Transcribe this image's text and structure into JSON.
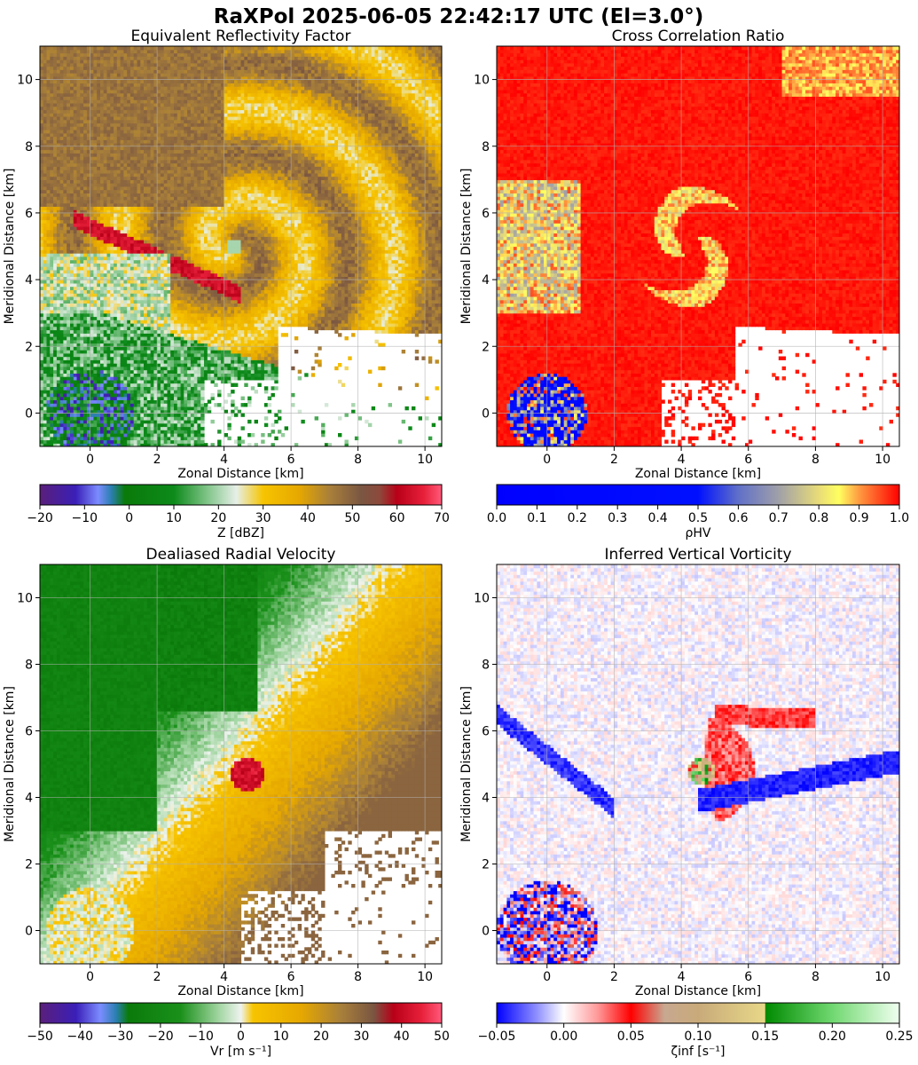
{
  "title": "RaXPol 2025-06-05 22:42:17 UTC (El=3.0°)",
  "chart_data": [
    {
      "type": "heatmap",
      "title": "Equivalent Reflectivity Factor",
      "xlabel": "Zonal Distance [km]",
      "ylabel": "Meridional Distance [km]",
      "xlim": [
        -1.5,
        10.5
      ],
      "ylim": [
        -1,
        11
      ],
      "xticks": [
        0,
        2,
        4,
        6,
        8,
        10
      ],
      "yticks": [
        0,
        2,
        4,
        6,
        8,
        10
      ],
      "grid": true,
      "field": "reflectivity",
      "features": {
        "vortex_center": [
          4.3,
          5.0
        ],
        "radar_location": [
          0,
          0
        ]
      },
      "colorbar": {
        "label": "Z [dBZ]",
        "range": [
          -20,
          70
        ],
        "ticks": [
          -20,
          -10,
          0,
          10,
          20,
          30,
          40,
          50,
          60,
          70
        ],
        "tick_labels": [
          "−20",
          "−10",
          "0",
          "10",
          "20",
          "30",
          "40",
          "50",
          "60",
          "70"
        ],
        "stops": [
          [
            -20,
            "#5a1f7a"
          ],
          [
            -12,
            "#3a1fb8"
          ],
          [
            -7,
            "#7b8cff"
          ],
          [
            -4,
            "#2a7fb0"
          ],
          [
            -1,
            "#0a7a0a"
          ],
          [
            10,
            "#0c8a1a"
          ],
          [
            18,
            "#88c890"
          ],
          [
            24,
            "#e6efe8"
          ],
          [
            30,
            "#f7c400"
          ],
          [
            38,
            "#e6a800"
          ],
          [
            45,
            "#a87f3a"
          ],
          [
            52,
            "#7a5642"
          ],
          [
            56,
            "#8c4a3c"
          ],
          [
            60,
            "#b80018"
          ],
          [
            66,
            "#e8203a"
          ],
          [
            70,
            "#ff5a7a"
          ]
        ]
      }
    },
    {
      "type": "heatmap",
      "title": "Cross Correlation Ratio",
      "xlabel": "Zonal Distance [km]",
      "ylabel": "Meridional Distance [km]",
      "xlim": [
        -1.5,
        10.5
      ],
      "ylim": [
        -1,
        11
      ],
      "xticks": [
        0,
        2,
        4,
        6,
        8,
        10
      ],
      "yticks": [
        0,
        2,
        4,
        6,
        8,
        10
      ],
      "grid": true,
      "field": "rhohv",
      "features": {
        "vortex_center": [
          4.3,
          5.0
        ],
        "radar_location": [
          0,
          0
        ]
      },
      "colorbar": {
        "label": "ρHV",
        "range": [
          0,
          1
        ],
        "ticks": [
          0,
          0.1,
          0.2,
          0.3,
          0.4,
          0.5,
          0.6,
          0.7,
          0.8,
          0.9,
          1.0
        ],
        "tick_labels": [
          "0.0",
          "0.1",
          "0.2",
          "0.3",
          "0.4",
          "0.5",
          "0.6",
          "0.7",
          "0.8",
          "0.9",
          "1.0"
        ],
        "stops": [
          [
            0,
            "#0000ff"
          ],
          [
            0.5,
            "#0010ff"
          ],
          [
            0.6,
            "#6070c8"
          ],
          [
            0.7,
            "#a0a0a8"
          ],
          [
            0.8,
            "#e8dc78"
          ],
          [
            0.85,
            "#ffff60"
          ],
          [
            0.9,
            "#ff9a40"
          ],
          [
            1.0,
            "#ff0000"
          ]
        ]
      }
    },
    {
      "type": "heatmap",
      "title": "Dealiased Radial Velocity",
      "xlabel": "Zonal Distance [km]",
      "ylabel": "Meridional Distance [km]",
      "xlim": [
        -1.5,
        10.5
      ],
      "ylim": [
        -1,
        11
      ],
      "xticks": [
        0,
        2,
        4,
        6,
        8,
        10
      ],
      "yticks": [
        0,
        2,
        4,
        6,
        8,
        10
      ],
      "grid": true,
      "field": "velocity",
      "features": {
        "vortex_center": [
          4.7,
          4.7
        ],
        "radar_location": [
          0,
          0
        ]
      },
      "colorbar": {
        "label": "Vr [m s⁻¹]",
        "range": [
          -50,
          50
        ],
        "ticks": [
          -50,
          -40,
          -30,
          -20,
          -10,
          0,
          10,
          20,
          30,
          40,
          50
        ],
        "tick_labels": [
          "−50",
          "−40",
          "−30",
          "−20",
          "−10",
          "0",
          "10",
          "20",
          "30",
          "40",
          "50"
        ],
        "stops": [
          [
            -50,
            "#5a1f7a"
          ],
          [
            -41,
            "#3a1fb8"
          ],
          [
            -35,
            "#7b8cff"
          ],
          [
            -31,
            "#2a7fb0"
          ],
          [
            -28,
            "#0a7a0a"
          ],
          [
            -15,
            "#1a901a"
          ],
          [
            -5,
            "#a8d8a8"
          ],
          [
            0,
            "#eef3ee"
          ],
          [
            3,
            "#f7c400"
          ],
          [
            15,
            "#e6a800"
          ],
          [
            25,
            "#a87f3a"
          ],
          [
            33,
            "#7a5642"
          ],
          [
            38,
            "#b80018"
          ],
          [
            45,
            "#e8203a"
          ],
          [
            50,
            "#ff5a7a"
          ]
        ]
      }
    },
    {
      "type": "heatmap",
      "title": "Inferred Vertical Vorticity",
      "xlabel": "Zonal Distance [km]",
      "ylabel": "Meridional Distance [km]",
      "xlim": [
        -1.5,
        10.5
      ],
      "ylim": [
        -1,
        11
      ],
      "xticks": [
        0,
        2,
        4,
        6,
        8,
        10
      ],
      "yticks": [
        0,
        2,
        4,
        6,
        8,
        10
      ],
      "grid": true,
      "field": "vorticity",
      "features": {
        "vortex_center": [
          4.6,
          4.8
        ],
        "radar_location": [
          0,
          0
        ]
      },
      "colorbar": {
        "label": "ζinf [s⁻¹]",
        "range": [
          -0.05,
          0.25
        ],
        "ticks": [
          -0.05,
          0.0,
          0.05,
          0.1,
          0.15,
          0.2,
          0.25
        ],
        "tick_labels": [
          "−0.05",
          "0.00",
          "0.05",
          "0.10",
          "0.15",
          "0.20",
          "0.25"
        ],
        "stops": [
          [
            -0.05,
            "#0000ff"
          ],
          [
            -0.02,
            "#9090ff"
          ],
          [
            0.0,
            "#ffffff"
          ],
          [
            0.025,
            "#ff9a9a"
          ],
          [
            0.05,
            "#ff0000"
          ],
          [
            0.075,
            "#c8a890"
          ],
          [
            0.1,
            "#c8aa7a"
          ],
          [
            0.15,
            "#e8d888"
          ],
          [
            0.1501,
            "#008a00"
          ],
          [
            0.2,
            "#70d870"
          ],
          [
            0.25,
            "#f0fff0"
          ]
        ]
      }
    }
  ]
}
